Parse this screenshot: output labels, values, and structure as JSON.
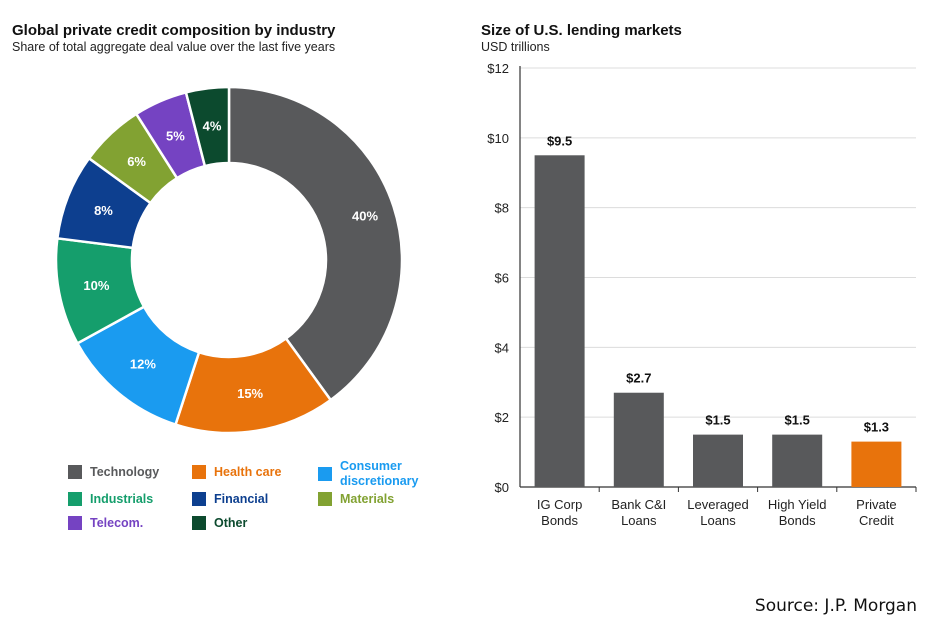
{
  "chart_data": [
    {
      "type": "pie",
      "title": "Global private credit composition by industry",
      "subtitle": "Share of total aggregate deal value over the last five years",
      "donut": true,
      "categories": [
        "Technology",
        "Health care",
        "Consumer discretionary",
        "Industrials",
        "Financial",
        "Materials",
        "Telecom.",
        "Other"
      ],
      "values": [
        40,
        15,
        12,
        10,
        8,
        6,
        5,
        4
      ],
      "labels": [
        "40%",
        "15%",
        "12%",
        "10%",
        "8%",
        "6%",
        "5%",
        "4%"
      ],
      "colors": [
        "#58595b",
        "#e8730c",
        "#1a9bf0",
        "#159e6c",
        "#0d3f8f",
        "#82a232",
        "#7543c2",
        "#0c4a2e"
      ],
      "legend": [
        {
          "label": "Technology",
          "color": "#58595b",
          "text_color": "#58595b"
        },
        {
          "label": "Health care",
          "color": "#e8730c",
          "text_color": "#e8730c"
        },
        {
          "label": "Consumer discretionary",
          "color": "#1a9bf0",
          "text_color": "#1a9bf0"
        },
        {
          "label": "Industrials",
          "color": "#159e6c",
          "text_color": "#159e6c"
        },
        {
          "label": "Financial",
          "color": "#0d3f8f",
          "text_color": "#0d3f8f"
        },
        {
          "label": "Materials",
          "color": "#82a232",
          "text_color": "#82a232"
        },
        {
          "label": "Telecom.",
          "color": "#7543c2",
          "text_color": "#7543c2"
        },
        {
          "label": "Other",
          "color": "#0c4a2e",
          "text_color": "#0c4a2e"
        }
      ],
      "legend_placement": "bottom"
    },
    {
      "type": "bar",
      "title": "Size of U.S. lending markets",
      "subtitle": "USD trillions",
      "categories": [
        "IG Corp Bonds",
        "Bank C&I Loans",
        "Leveraged Loans",
        "High Yield Bonds",
        "Private Credit"
      ],
      "category_lines": [
        [
          "IG Corp",
          "Bonds"
        ],
        [
          "Bank C&I",
          "Loans"
        ],
        [
          "Leveraged",
          "Loans"
        ],
        [
          "High Yield",
          "Bonds"
        ],
        [
          "Private",
          "Credit"
        ]
      ],
      "values": [
        9.5,
        2.7,
        1.5,
        1.5,
        1.3
      ],
      "value_labels": [
        "$9.5",
        "$2.7",
        "$1.5",
        "$1.5",
        "$1.3"
      ],
      "colors": [
        "#58595b",
        "#58595b",
        "#58595b",
        "#58595b",
        "#e8730c"
      ],
      "ylim": [
        0,
        12
      ],
      "yticks": [
        0,
        2,
        4,
        6,
        8,
        10,
        12
      ],
      "ytick_labels": [
        "$0",
        "$2",
        "$4",
        "$6",
        "$8",
        "$10",
        "$12"
      ],
      "grid": true,
      "xlabel": "",
      "ylabel": ""
    }
  ],
  "source": "Source: J.P. Morgan"
}
